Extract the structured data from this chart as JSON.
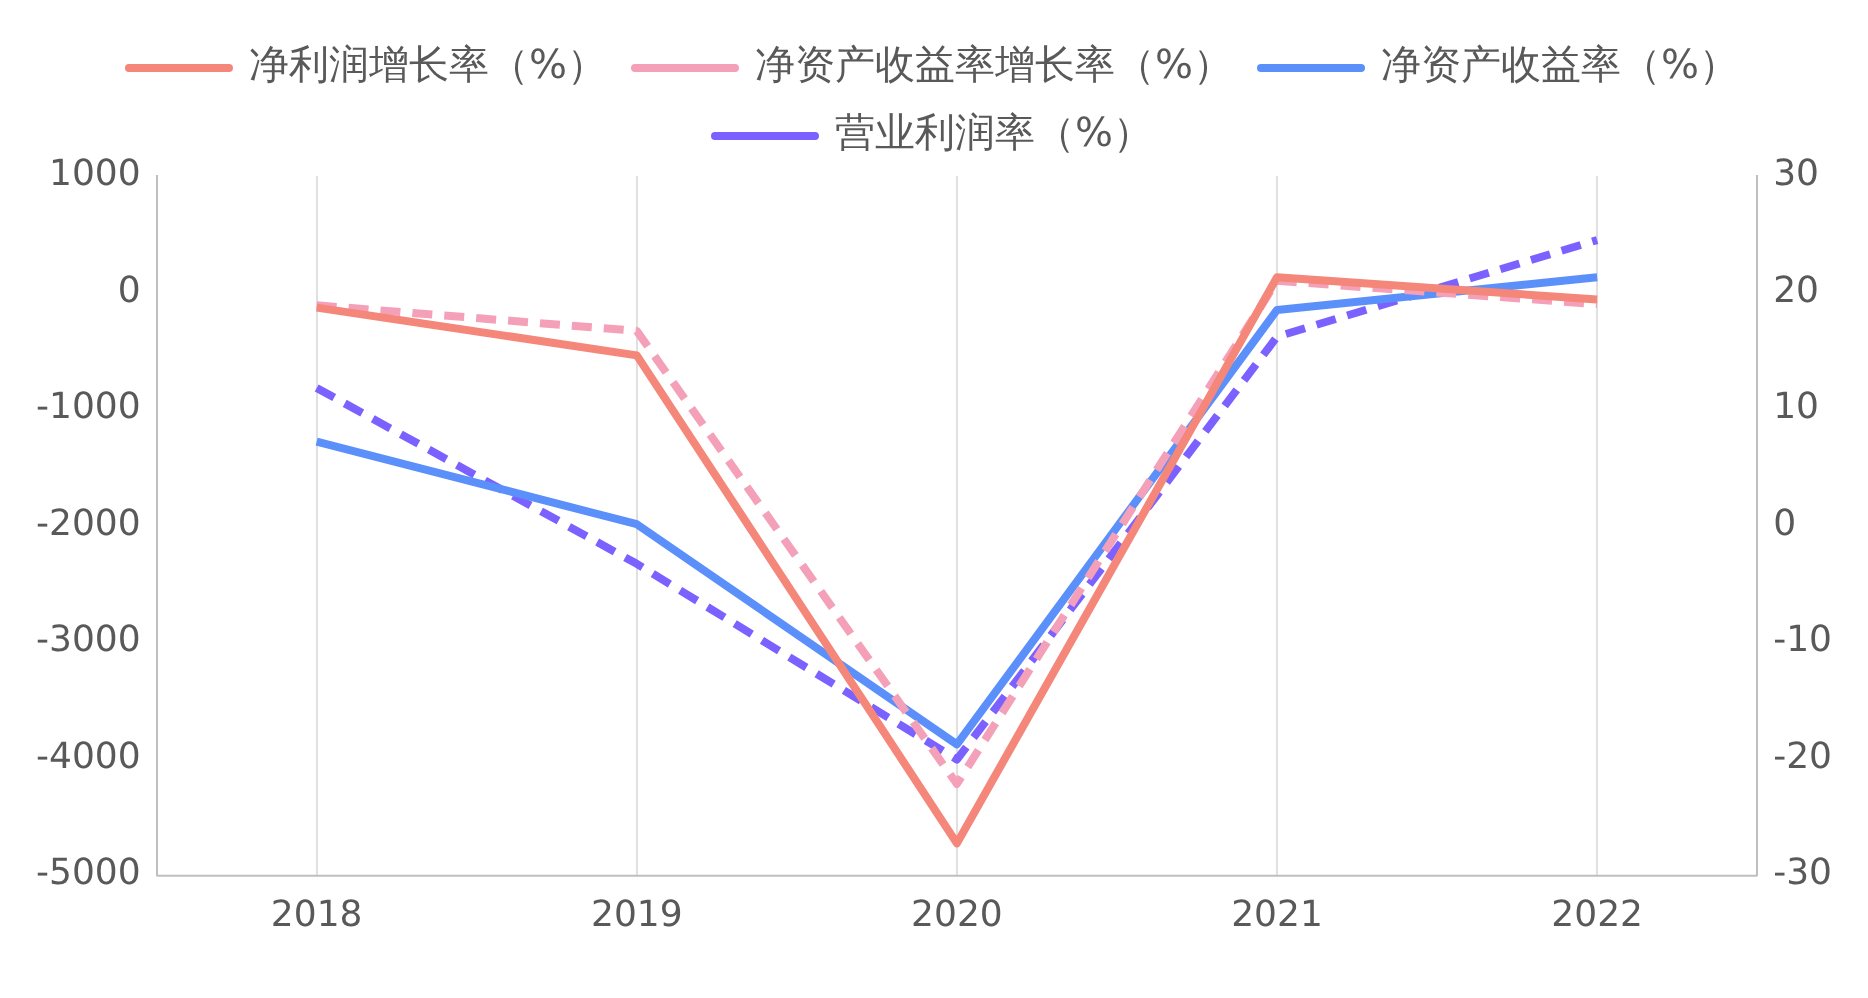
{
  "chart_data": {
    "type": "line",
    "categories": [
      "2018",
      "2019",
      "2020",
      "2021",
      "2022"
    ],
    "series": [
      {
        "name": "净利润增长率（%）",
        "color": "#f4877a",
        "line_style": "solid",
        "values": [
          -130,
          -540,
          -4730,
          130,
          -60
        ]
      },
      {
        "name": "净资产收益率增长率（%）",
        "color": "#f4a0b8",
        "line_style": "dashed",
        "values": [
          -110,
          -330,
          -4220,
          100,
          -100
        ]
      },
      {
        "name": "净资产收益率（%）",
        "color": "#5b8ff9",
        "line_style": "solid",
        "axis": "y2",
        "values": [
          7.2,
          0.1,
          -18.8,
          18.5,
          21.3
        ]
      },
      {
        "name": "营业利润率（%）",
        "color": "#7b61ff",
        "line_style": "dashed",
        "axis": "y2",
        "values": [
          11.8,
          -3.3,
          -20.1,
          16.2,
          24.5
        ]
      }
    ],
    "ylim": [
      -5000,
      1000
    ],
    "yticks": [
      -5000,
      -4000,
      -3000,
      -2000,
      -1000,
      0,
      1000
    ],
    "y2lim": [
      -30,
      30
    ],
    "y2ticks": [
      -30,
      -20,
      -10,
      0,
      10,
      20,
      30
    ],
    "grid": "x",
    "legend": "top",
    "marker": "none"
  }
}
